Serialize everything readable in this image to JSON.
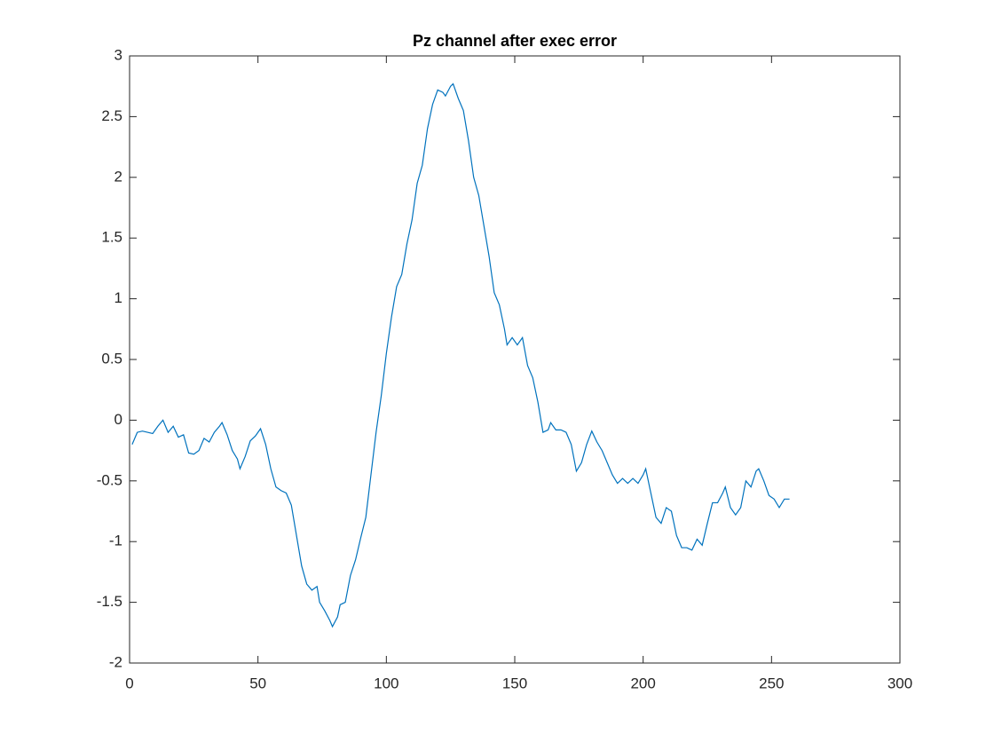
{
  "chart_data": {
    "type": "line",
    "title": "Pz channel after exec error",
    "x": [
      1,
      3,
      5,
      7,
      9,
      11,
      13,
      15,
      17,
      19,
      21,
      23,
      25,
      27,
      29,
      31,
      33,
      35,
      36,
      38,
      40,
      42,
      43,
      45,
      47,
      49,
      51,
      53,
      55,
      57,
      59,
      61,
      63,
      65,
      67,
      69,
      71,
      73,
      74,
      76,
      78,
      79,
      81,
      82,
      84,
      86,
      88,
      90,
      92,
      94,
      96,
      98,
      100,
      102,
      104,
      106,
      108,
      110,
      112,
      114,
      116,
      118,
      120,
      122,
      123,
      125,
      126,
      128,
      130,
      132,
      134,
      136,
      138,
      140,
      142,
      144,
      146,
      147,
      149,
      151,
      153,
      155,
      157,
      159,
      161,
      163,
      164,
      166,
      168,
      170,
      172,
      174,
      176,
      178,
      180,
      182,
      184,
      186,
      188,
      190,
      192,
      194,
      196,
      198,
      200,
      201,
      203,
      205,
      207,
      209,
      211,
      213,
      215,
      217,
      219,
      221,
      223,
      225,
      227,
      229,
      231,
      232,
      234,
      236,
      238,
      240,
      242,
      244,
      245,
      247,
      249,
      251,
      253,
      255,
      257
    ],
    "series": [
      {
        "name": "Pz",
        "color": "#0072bd",
        "values": [
          -0.2,
          -0.1,
          -0.09,
          -0.1,
          -0.11,
          -0.05,
          0.0,
          -0.1,
          -0.05,
          -0.14,
          -0.12,
          -0.27,
          -0.28,
          -0.25,
          -0.15,
          -0.18,
          -0.1,
          -0.05,
          -0.02,
          -0.12,
          -0.25,
          -0.32,
          -0.4,
          -0.3,
          -0.17,
          -0.13,
          -0.07,
          -0.2,
          -0.4,
          -0.55,
          -0.58,
          -0.6,
          -0.7,
          -0.95,
          -1.2,
          -1.35,
          -1.4,
          -1.37,
          -1.5,
          -1.57,
          -1.65,
          -1.7,
          -1.62,
          -1.52,
          -1.5,
          -1.28,
          -1.15,
          -0.97,
          -0.8,
          -0.45,
          -0.1,
          0.2,
          0.55,
          0.85,
          1.1,
          1.2,
          1.45,
          1.65,
          1.95,
          2.1,
          2.4,
          2.6,
          2.72,
          2.7,
          2.67,
          2.75,
          2.77,
          2.65,
          2.55,
          2.3,
          2.0,
          1.85,
          1.6,
          1.35,
          1.05,
          0.95,
          0.75,
          0.62,
          0.68,
          0.62,
          0.68,
          0.45,
          0.35,
          0.15,
          -0.1,
          -0.08,
          -0.02,
          -0.08,
          -0.08,
          -0.1,
          -0.2,
          -0.42,
          -0.35,
          -0.2,
          -0.09,
          -0.18,
          -0.25,
          -0.35,
          -0.45,
          -0.52,
          -0.48,
          -0.52,
          -0.48,
          -0.52,
          -0.45,
          -0.4,
          -0.6,
          -0.8,
          -0.85,
          -0.72,
          -0.75,
          -0.95,
          -1.05,
          -1.05,
          -1.07,
          -0.98,
          -1.03,
          -0.85,
          -0.68,
          -0.68,
          -0.6,
          -0.55,
          -0.72,
          -0.78,
          -0.72,
          -0.5,
          -0.55,
          -0.42,
          -0.4,
          -0.5,
          -0.62,
          -0.65,
          -0.72,
          -0.65,
          -0.65
        ]
      }
    ],
    "xlim": [
      0,
      300
    ],
    "xticks": [
      0,
      50,
      100,
      150,
      200,
      250,
      300
    ],
    "ylim": [
      -2,
      3
    ],
    "yticks": [
      -2,
      -1.5,
      -1,
      -0.5,
      0,
      0.5,
      1,
      1.5,
      2,
      2.5,
      3
    ]
  }
}
